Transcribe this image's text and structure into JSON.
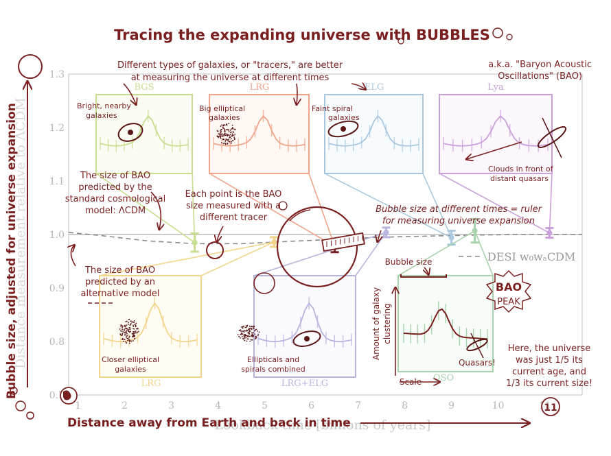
{
  "title": "Tracing the expanding universe with BUBBLES",
  "annotations": {
    "tracers_note_1": "Different types of galaxies, or \"tracers,\" are better",
    "tracers_note_2": "at measuring the universe at different times",
    "aka_1": "a.k.a. \"Baryon Acoustic",
    "aka_2": "Oscillations\" (BAO)",
    "lcdm_1": "The size of BAO",
    "lcdm_2": "predicted by the",
    "lcdm_3": "standard cosmological",
    "lcdm_4": "model: ΛCDM",
    "point_1": "Each point is the BAO",
    "point_2": "size measured with a",
    "point_3": "different tracer",
    "ruler_1": "Bubble size at different times = ruler",
    "ruler_2": "for measuring universe expansion",
    "alt_1": "The size of BAO",
    "alt_2": "predicted by an",
    "alt_3": "alternative model",
    "bubble_size": "Bubble size",
    "bao_peak_1": "BAO",
    "bao_peak_2": "PEAK",
    "clustering_1": "Amount of galaxy",
    "clustering_2": "clustering",
    "scale": "Scale",
    "quasars": "Quasars!",
    "age_1": "Here, the universe",
    "age_2": "was just 1/5 its",
    "age_3": "current age, and",
    "age_4": "1/3 its current size!",
    "bgs_1": "Bright, nearby",
    "bgs_2": "galaxies",
    "lrg_1": "Big elliptical",
    "lrg_2": "galaxies",
    "elg_1": "Faint spiral",
    "elg_2": "galaxies",
    "lya_1": "Clouds in front of",
    "lya_2": "distant quasars",
    "lrg2_1": "Closer elliptical",
    "lrg2_2": "galaxies",
    "combined_1": "Ellipticals and",
    "combined_2": "spirals combined",
    "y_handwritten": "Bubble size, adjusted for universe expansion",
    "x_handwritten": "Distance away from Earth and back in time",
    "x_eleven": "11"
  },
  "colors": {
    "ink": "#7a1f1f",
    "bgs": "#c7dd8f",
    "lrg": "#f0a58a",
    "elg": "#a9c8df",
    "lya": "#c9a0d9",
    "lrg_low": "#f2d48a",
    "lrg_elg": "#b7b4e0",
    "qso": "#a8d3ac"
  },
  "chart_data": {
    "type": "scatter",
    "title": "",
    "xlabel": "Lookback time [billions of years]",
    "ylabel": "Distance measurement relative to ΛCDM",
    "xlim": [
      0.8,
      11.8
    ],
    "ylim": [
      0.7,
      1.3
    ],
    "xticks": [
      1,
      2,
      3,
      4,
      5,
      6,
      7,
      8,
      9,
      10,
      11
    ],
    "yticks": [
      0.7,
      0.8,
      0.9,
      1.0,
      1.1,
      1.2,
      1.3
    ],
    "points": [
      {
        "tracer": "BGS",
        "x": 3.5,
        "y": 0.985,
        "err": 0.017,
        "color": "#c7dd8f"
      },
      {
        "tracer": "LRG",
        "x": 5.2,
        "y": 0.986,
        "err": 0.009,
        "color": "#f2d48a"
      },
      {
        "tracer": "LRG",
        "x": 6.5,
        "y": 0.978,
        "err": 0.011,
        "color": "#7a1f1f"
      },
      {
        "tracer": "LRG+ELG",
        "x": 7.6,
        "y": 1.004,
        "err": 0.009,
        "color": "#b7b4e0"
      },
      {
        "tracer": "ELG",
        "x": 9.0,
        "y": 0.994,
        "err": 0.013,
        "color": "#a9c8df"
      },
      {
        "tracer": "QSO",
        "x": 9.5,
        "y": 1.007,
        "err": 0.022,
        "color": "#a8d3ac"
      },
      {
        "tracer": "Lya",
        "x": 11.1,
        "y": 1.003,
        "err": 0.009,
        "color": "#c9a0d9"
      }
    ],
    "lcdm_line": 1.0,
    "desi_curve": {
      "label": "DESI w₀wₐCDM",
      "x": [
        0.8,
        1.5,
        2.5,
        3.5,
        4.5,
        5.5,
        6.5,
        7.5,
        8.5,
        9.5,
        10.5,
        11.8
      ],
      "y": [
        1.004,
        0.998,
        0.988,
        0.983,
        0.983,
        0.987,
        0.991,
        0.995,
        0.997,
        0.999,
        1.0,
        1.0
      ]
    },
    "insets": [
      "BGS",
      "LRG",
      "ELG",
      "Lya",
      "LRG",
      "LRG+ELG",
      "QSO"
    ],
    "grid": false,
    "legend": "right"
  }
}
